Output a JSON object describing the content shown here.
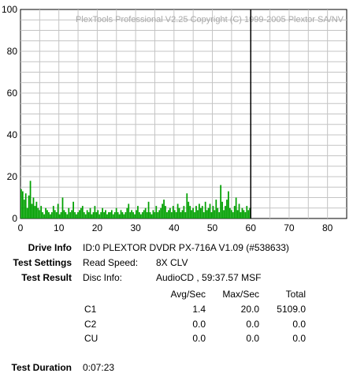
{
  "chart_data": {
    "type": "bar",
    "watermark": "PlexTools Professional V2.25 Copyright (C) 1999-2005 Plextor SA/NV",
    "xlim": [
      0,
      85
    ],
    "ylim": [
      0,
      100
    ],
    "xticks": [
      "0",
      "10",
      "20",
      "30",
      "40",
      "50",
      "60",
      "70",
      "80"
    ],
    "yticks": [
      "0",
      "20",
      "40",
      "60",
      "80",
      "100"
    ],
    "grid": true,
    "end_marker_minute": 60,
    "series": [
      {
        "color": "#00a000",
        "x": [
          0.0,
          0.4,
          0.8,
          1.2,
          1.6,
          2.0,
          2.4,
          2.8,
          3.2,
          3.6,
          4.0,
          4.4,
          4.8,
          5.2,
          5.6,
          6.0,
          6.4,
          6.8,
          7.2,
          7.6,
          8.0,
          8.4,
          8.8,
          9.2,
          9.6,
          10.0,
          10.4,
          10.8,
          11.2,
          11.6,
          12.0,
          12.4,
          12.8,
          13.2,
          13.6,
          14.0,
          14.4,
          14.8,
          15.2,
          15.6,
          16.0,
          16.4,
          16.8,
          17.2,
          17.6,
          18.0,
          18.4,
          18.8,
          19.2,
          19.6,
          20.0,
          20.4,
          20.8,
          21.2,
          21.6,
          22.0,
          22.4,
          22.8,
          23.2,
          23.6,
          24.0,
          24.4,
          24.8,
          25.2,
          25.6,
          26.0,
          26.4,
          26.8,
          27.2,
          27.6,
          28.0,
          28.4,
          28.8,
          29.2,
          29.6,
          30.0,
          30.4,
          30.8,
          31.2,
          31.6,
          32.0,
          32.4,
          32.8,
          33.2,
          33.6,
          34.0,
          34.4,
          34.8,
          35.2,
          35.6,
          36.0,
          36.4,
          36.8,
          37.2,
          37.6,
          38.0,
          38.4,
          38.8,
          39.2,
          39.6,
          40.0,
          40.4,
          40.8,
          41.2,
          41.6,
          42.0,
          42.4,
          42.8,
          43.2,
          43.6,
          44.0,
          44.4,
          44.8,
          45.2,
          45.6,
          46.0,
          46.4,
          46.8,
          47.2,
          47.6,
          48.0,
          48.4,
          48.8,
          49.2,
          49.6,
          50.0,
          50.4,
          50.8,
          51.2,
          51.6,
          52.0,
          52.4,
          52.8,
          53.2,
          53.6,
          54.0,
          54.4,
          54.8,
          55.2,
          55.6,
          56.0,
          56.4,
          56.8,
          57.2,
          57.6,
          58.0,
          58.4,
          58.8,
          59.2,
          59.6
        ],
        "values": [
          14,
          13,
          9,
          12,
          5,
          11,
          18,
          7,
          10,
          6,
          8,
          5,
          4,
          6,
          3,
          2,
          5,
          4,
          3,
          2,
          3,
          6,
          4,
          3,
          7,
          2,
          3,
          10,
          4,
          3,
          2,
          5,
          3,
          4,
          8,
          3,
          2,
          3,
          4,
          5,
          6,
          3,
          2,
          4,
          3,
          5,
          2,
          3,
          6,
          3,
          4,
          2,
          3,
          5,
          3,
          4,
          2,
          3,
          3,
          4,
          2,
          3,
          5,
          3,
          2,
          4,
          3,
          2,
          3,
          5,
          7,
          3,
          4,
          3,
          2,
          4,
          6,
          3,
          2,
          3,
          4,
          5,
          3,
          8,
          3,
          2,
          4,
          3,
          6,
          3,
          4,
          5,
          7,
          9,
          6,
          3,
          4,
          5,
          3,
          6,
          4,
          3,
          7,
          5,
          3,
          4,
          6,
          3,
          12,
          8,
          6,
          4,
          5,
          3,
          6,
          4,
          7,
          5,
          6,
          3,
          8,
          4,
          5,
          7,
          3,
          6,
          4,
          9,
          5,
          3,
          16,
          8,
          4,
          6,
          9,
          13,
          5,
          4,
          3,
          6,
          10,
          4,
          7,
          3,
          5,
          4,
          3,
          6,
          4,
          5
        ]
      }
    ]
  },
  "info": {
    "drive_info_label": "Drive Info",
    "drive_info_value": "ID:0 PLEXTOR DVDR PX-716A V1.09 (#538633)",
    "test_settings_label": "Test Settings",
    "read_speed_label": "Read Speed:",
    "read_speed_value": "8X CLV",
    "test_result_label": "Test Result",
    "disc_info_label": "Disc Info:",
    "disc_info_value": "AudioCD , 59:37.57 MSF",
    "columns": [
      "Avg/Sec",
      "Max/Sec",
      "Total"
    ],
    "rows": [
      {
        "name": "C1",
        "avg": "1.4",
        "max": "20.0",
        "total": "5109.0"
      },
      {
        "name": "C2",
        "avg": "0.0",
        "max": "0.0",
        "total": "0.0"
      },
      {
        "name": "CU",
        "avg": "0.0",
        "max": "0.0",
        "total": "0.0"
      }
    ],
    "test_duration_label": "Test Duration",
    "test_duration_value": "0:07:23"
  }
}
